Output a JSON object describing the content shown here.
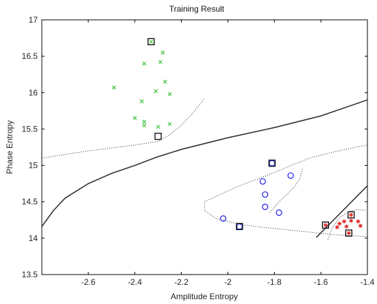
{
  "chart_data": {
    "type": "scatter",
    "title": "Training Result",
    "xlabel": "Amplitude Entropy",
    "ylabel": "Phase Entropy",
    "xlim": [
      -2.8,
      -1.4
    ],
    "ylim": [
      13.5,
      17
    ],
    "xticks": [
      -2.6,
      -2.4,
      -2.2,
      -2,
      -1.8,
      -1.6,
      -1.4
    ],
    "xtick_labels": [
      "-2.6",
      "-2.4",
      "-2.2",
      "-2",
      "-1.8",
      "-1.6",
      "-1.4"
    ],
    "yticks": [
      13.5,
      14,
      14.5,
      15,
      15.5,
      16,
      16.5,
      17
    ],
    "ytick_labels": [
      "13.5",
      "14",
      "14.5",
      "15",
      "15.5",
      "16",
      "16.5",
      "17"
    ],
    "grid": false,
    "series": [
      {
        "marker": "x",
        "color": "#3cc23c",
        "points": [
          [
            -2.33,
            16.7
          ],
          [
            -2.28,
            16.55
          ],
          [
            -2.29,
            16.42
          ],
          [
            -2.36,
            16.4
          ],
          [
            -2.27,
            16.15
          ],
          [
            -2.25,
            15.98
          ],
          [
            -2.31,
            16.02
          ],
          [
            -2.37,
            15.88
          ],
          [
            -2.49,
            16.07
          ],
          [
            -2.4,
            15.65
          ],
          [
            -2.36,
            15.6
          ],
          [
            -2.36,
            15.55
          ],
          [
            -2.25,
            15.57
          ],
          [
            -2.3,
            15.53
          ]
        ]
      },
      {
        "marker": "o",
        "color": "#1a1aee",
        "points": [
          [
            -1.85,
            14.78
          ],
          [
            -1.73,
            14.86
          ],
          [
            -1.84,
            14.6
          ],
          [
            -1.84,
            14.43
          ],
          [
            -1.78,
            14.35
          ],
          [
            -2.02,
            14.27
          ],
          [
            -1.81,
            15.03
          ],
          [
            -1.95,
            14.16
          ]
        ]
      },
      {
        "marker": "*",
        "color": "#e02020",
        "points": [
          [
            -1.52,
            14.2
          ],
          [
            -1.5,
            14.23
          ],
          [
            -1.47,
            14.24
          ],
          [
            -1.44,
            14.23
          ],
          [
            -1.53,
            14.15
          ],
          [
            -1.49,
            14.16
          ],
          [
            -1.43,
            14.17
          ],
          [
            -1.47,
            14.32
          ],
          [
            -1.58,
            14.18
          ],
          [
            -1.48,
            14.07
          ]
        ]
      },
      {
        "marker": "square",
        "color": "#000000",
        "points": [
          [
            -2.33,
            16.7
          ],
          [
            -2.3,
            15.4
          ],
          [
            -1.81,
            15.03
          ],
          [
            -1.95,
            14.16
          ],
          [
            -1.58,
            14.18
          ],
          [
            -1.47,
            14.32
          ],
          [
            -1.48,
            14.07
          ]
        ]
      }
    ],
    "boundaries": [
      {
        "style": "solid",
        "color": "#333333",
        "points": [
          [
            -2.8,
            14.16
          ],
          [
            -2.75,
            14.38
          ],
          [
            -2.7,
            14.55
          ],
          [
            -2.6,
            14.75
          ],
          [
            -2.5,
            14.89
          ],
          [
            -2.4,
            15.0
          ],
          [
            -2.3,
            15.12
          ],
          [
            -2.2,
            15.22
          ],
          [
            -2.0,
            15.38
          ],
          [
            -1.8,
            15.52
          ],
          [
            -1.6,
            15.68
          ],
          [
            -1.4,
            15.9
          ]
        ]
      },
      {
        "style": "solid",
        "color": "#333333",
        "points": [
          [
            -1.62,
            14.01
          ],
          [
            -1.4,
            14.72
          ]
        ]
      },
      {
        "style": "dotted",
        "color": "#444444",
        "points": [
          [
            -2.8,
            15.1
          ],
          [
            -2.7,
            15.15
          ],
          [
            -2.6,
            15.2
          ],
          [
            -2.5,
            15.24
          ],
          [
            -2.4,
            15.28
          ],
          [
            -2.3,
            15.33
          ],
          [
            -2.25,
            15.42
          ],
          [
            -2.2,
            15.55
          ],
          [
            -2.15,
            15.72
          ],
          [
            -2.1,
            15.92
          ]
        ]
      },
      {
        "style": "dotted",
        "color": "#444444",
        "points": [
          [
            -1.4,
            14.02
          ],
          [
            -1.55,
            14.05
          ],
          [
            -1.7,
            14.1
          ],
          [
            -1.85,
            14.15
          ],
          [
            -1.95,
            14.19
          ],
          [
            -2.05,
            14.27
          ],
          [
            -2.1,
            14.38
          ],
          [
            -2.1,
            14.5
          ],
          [
            -2.02,
            14.62
          ],
          [
            -1.95,
            14.72
          ],
          [
            -1.85,
            14.84
          ],
          [
            -1.75,
            14.97
          ],
          [
            -1.65,
            15.1
          ],
          [
            -1.55,
            15.18
          ],
          [
            -1.45,
            15.25
          ],
          [
            -1.4,
            15.28
          ]
        ]
      },
      {
        "style": "dotted",
        "color": "#444444",
        "points": [
          [
            -1.82,
            14.35
          ],
          [
            -1.78,
            14.5
          ],
          [
            -1.74,
            14.62
          ],
          [
            -1.71,
            14.72
          ],
          [
            -1.69,
            14.82
          ],
          [
            -1.68,
            14.95
          ]
        ]
      },
      {
        "style": "dotted",
        "color": "#444444",
        "points": [
          [
            -1.57,
            13.98
          ],
          [
            -1.55,
            14.15
          ],
          [
            -1.52,
            14.28
          ],
          [
            -1.48,
            14.37
          ],
          [
            -1.44,
            14.39
          ],
          [
            -1.4,
            14.38
          ]
        ]
      }
    ]
  }
}
